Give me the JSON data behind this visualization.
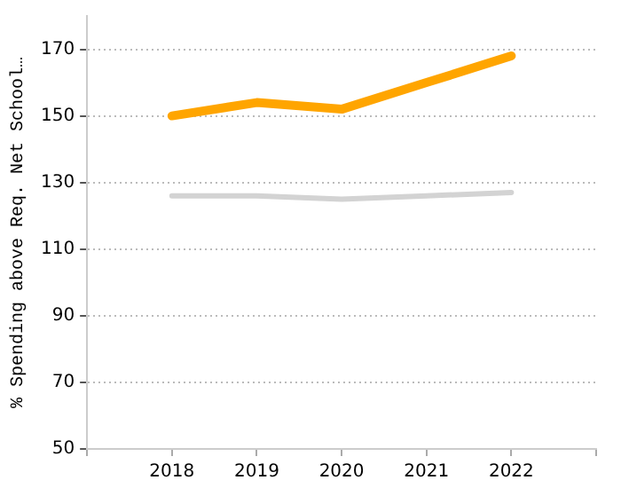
{
  "chart_data": {
    "type": "line",
    "ylabel": "% Spending above Req. Net School…",
    "x": [
      2018,
      2019,
      2020,
      2021,
      2022
    ],
    "series": [
      {
        "color": "#ffa500",
        "values": [
          150,
          154,
          152,
          160,
          168
        ]
      },
      {
        "color": "#d3d3d3",
        "values": [
          126,
          126,
          125,
          126,
          127
        ]
      }
    ],
    "xlim": [
      2017,
      2023
    ],
    "xticks": [
      {
        "value": 2017,
        "label": null
      },
      2018,
      2019,
      2020,
      2021,
      2022,
      {
        "value": 2023,
        "label": null
      }
    ],
    "ylim": [
      50,
      180
    ],
    "yticks": [
      50,
      70,
      90,
      110,
      130,
      150,
      170
    ],
    "grid": "y",
    "legend": false,
    "marker": "none",
    "line_style": "solid"
  }
}
